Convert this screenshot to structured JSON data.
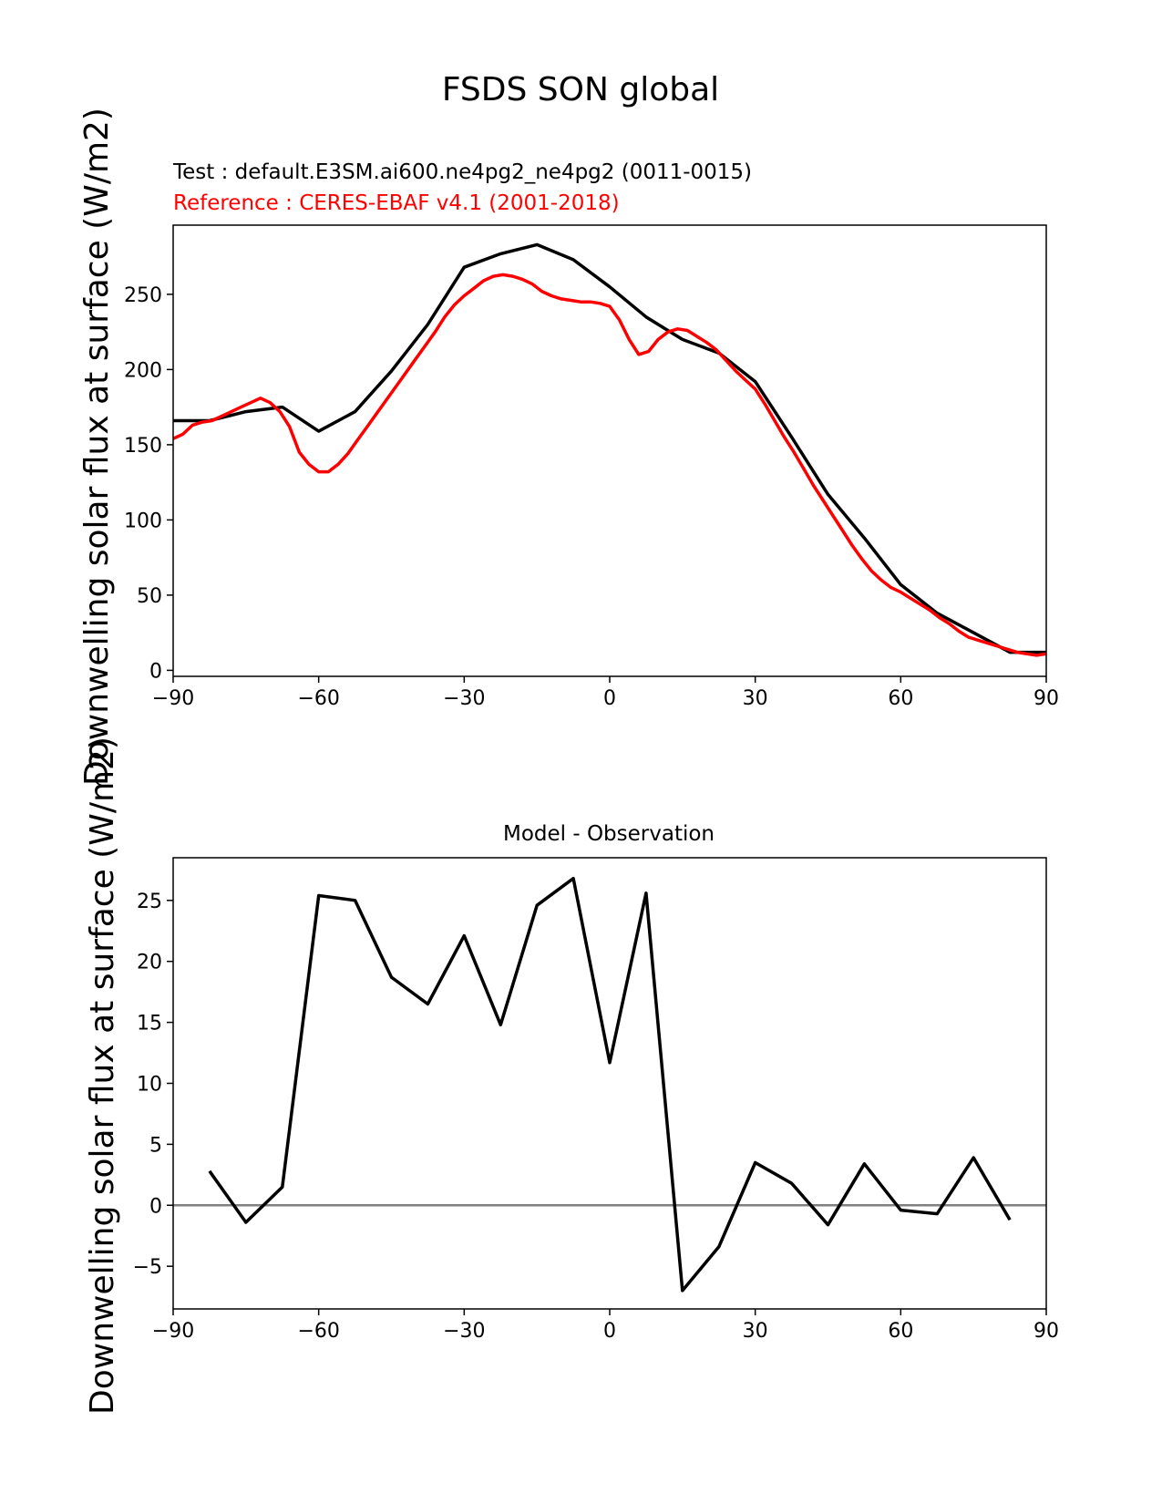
{
  "figure": {
    "suptitle": "FSDS SON global"
  },
  "chart_data": [
    {
      "type": "line",
      "test_label": "Test : default.E3SM.ai600.ne4pg2_ne4pg2 (0011-0015)",
      "reference_label": "Reference : CERES-EBAF v4.1 (2001-2018)",
      "ylabel": "Downwelling solar flux at surface (W/m2)",
      "xlim": [
        -90,
        90
      ],
      "ylim": [
        -4,
        296
      ],
      "xticks": [
        -90,
        -60,
        -30,
        0,
        30,
        60,
        90
      ],
      "xtick_labels": [
        "−90",
        "−60",
        "−30",
        "0",
        "30",
        "60",
        "90"
      ],
      "yticks": [
        0,
        50,
        100,
        150,
        200,
        250
      ],
      "yticks_labels": [
        "0",
        "50",
        "100",
        "150",
        "200",
        "250"
      ],
      "series": [
        {
          "color": "#000000",
          "x": [
            -90,
            -82.5,
            -75,
            -67.5,
            -60,
            -52.5,
            -45,
            -37.5,
            -30,
            -22.5,
            -15,
            -7.5,
            0,
            7.5,
            15,
            22.5,
            30,
            37.5,
            45,
            52.5,
            60,
            67.5,
            75,
            82.5,
            90
          ],
          "y": [
            166,
            166,
            172,
            175,
            159,
            172,
            199,
            230,
            268,
            277,
            283,
            273,
            255,
            235,
            220,
            211,
            192,
            155,
            117,
            88,
            57,
            38,
            25,
            12,
            12
          ]
        },
        {
          "color": "#ff0000",
          "x": [
            -90,
            -88,
            -86,
            -84,
            -82,
            -80,
            -78,
            -76,
            -74,
            -72,
            -70,
            -68,
            -66,
            -64,
            -62,
            -60,
            -58,
            -56,
            -54,
            -52,
            -50,
            -48,
            -46,
            -44,
            -42,
            -40,
            -38,
            -36,
            -34,
            -32,
            -30,
            -28,
            -26,
            -24,
            -22,
            -20,
            -18,
            -16,
            -14,
            -12,
            -10,
            -8,
            -6,
            -4,
            -2,
            0,
            2,
            4,
            6,
            8,
            10,
            12,
            14,
            16,
            18,
            20,
            22,
            24,
            26,
            28,
            30,
            32,
            34,
            36,
            38,
            40,
            42,
            44,
            46,
            48,
            50,
            52,
            54,
            56,
            58,
            60,
            62,
            64,
            66,
            68,
            70,
            72,
            74,
            76,
            78,
            80,
            82,
            84,
            86,
            88,
            90
          ],
          "y": [
            154,
            157,
            163,
            165,
            166,
            169,
            172,
            175,
            178,
            181,
            178,
            172,
            162,
            145,
            137,
            132,
            132,
            137,
            144,
            153,
            162,
            171,
            180,
            189,
            198,
            207,
            216,
            225,
            235,
            243,
            249,
            254,
            259,
            262,
            263,
            262,
            260,
            257,
            252,
            249,
            247,
            246,
            245,
            245,
            244,
            242,
            233,
            220,
            210,
            212,
            220,
            225,
            227,
            226,
            222,
            218,
            213,
            206,
            199,
            193,
            187,
            177,
            166,
            155,
            145,
            134,
            123,
            113,
            103,
            93,
            83,
            74,
            66,
            60,
            55,
            52,
            48,
            44,
            40,
            35,
            31,
            26,
            22,
            20,
            18,
            16,
            14,
            12,
            11,
            10,
            11
          ]
        }
      ]
    },
    {
      "type": "line",
      "title": "Model - Observation",
      "ylabel": "Downwelling solar flux at surface (W/m2)",
      "xlim": [
        -90,
        90
      ],
      "ylim": [
        -8.5,
        28.5
      ],
      "xticks": [
        -90,
        -60,
        -30,
        0,
        30,
        60,
        90
      ],
      "xtick_labels": [
        "−90",
        "−60",
        "−30",
        "0",
        "30",
        "60",
        "90"
      ],
      "yticks": [
        -5,
        0,
        5,
        10,
        15,
        20,
        25
      ],
      "ytick_labels": [
        "−5",
        "0",
        "5",
        "10",
        "15",
        "20",
        "25"
      ],
      "zero_line": true,
      "series": [
        {
          "color": "#000000",
          "x": [
            -82.5,
            -75,
            -67.5,
            -60,
            -52.5,
            -45,
            -37.5,
            -30,
            -22.5,
            -15,
            -7.5,
            0,
            7.5,
            15,
            22.5,
            30,
            37.5,
            45,
            52.5,
            60,
            67.5,
            75,
            82.5
          ],
          "y": [
            2.8,
            -1.4,
            1.5,
            25.4,
            25.0,
            18.7,
            16.5,
            22.1,
            14.8,
            24.6,
            26.8,
            11.7,
            25.6,
            -7.0,
            -3.4,
            3.5,
            1.8,
            -1.6,
            3.4,
            -0.4,
            -0.7,
            3.9,
            -1.2
          ]
        }
      ]
    }
  ]
}
